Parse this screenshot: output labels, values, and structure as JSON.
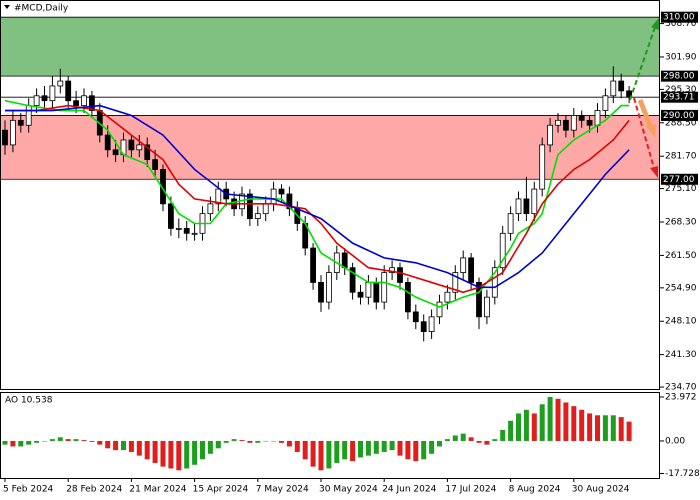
{
  "chart_data": [
    {
      "type": "candlestick",
      "title": "#MCD,Daily",
      "categories": [
        "5 Feb 2024",
        null,
        null,
        null,
        null,
        null,
        null,
        null,
        "28 Feb 2024",
        null,
        null,
        null,
        null,
        null,
        null,
        null,
        "21 Mar 2024",
        null,
        null,
        null,
        null,
        null,
        null,
        null,
        "15 Apr 2024",
        null,
        null,
        null,
        null,
        null,
        null,
        null,
        "7 May 2024",
        null,
        null,
        null,
        null,
        null,
        null,
        null,
        "30 May 2024",
        null,
        null,
        null,
        null,
        null,
        null,
        null,
        "24 Jun 2024",
        null,
        null,
        null,
        null,
        null,
        null,
        null,
        "17 Jul 2024",
        null,
        null,
        null,
        null,
        null,
        null,
        null,
        "8 Aug 2024",
        null,
        null,
        null,
        null,
        null,
        null,
        null,
        "30 Aug 2024",
        null,
        null,
        null,
        null,
        null,
        null,
        null
      ],
      "open": [
        287,
        284,
        289,
        288,
        292,
        294,
        293,
        296,
        297,
        293,
        292,
        294,
        291,
        286,
        283,
        282,
        285,
        283,
        284,
        281,
        279,
        272,
        267,
        267,
        266,
        266,
        270,
        272,
        275,
        273,
        271,
        274,
        269,
        270,
        272,
        275,
        274,
        271,
        268,
        263,
        256,
        252,
        258,
        262,
        259,
        254,
        253,
        256,
        252,
        258,
        259,
        256,
        250,
        248,
        246,
        249,
        252,
        254,
        258,
        261,
        256,
        249,
        253,
        259,
        266,
        270,
        273,
        270,
        275,
        284,
        288,
        289,
        287,
        290,
        289,
        288,
        291,
        294,
        297,
        295
      ],
      "high": [
        289,
        291,
        290.5,
        293.5,
        295.5,
        296,
        298,
        299.5,
        298,
        295,
        295.5,
        295,
        292.5,
        288,
        285,
        286.5,
        286,
        286,
        285.5,
        283,
        280,
        273.5,
        269,
        268.5,
        268,
        271.5,
        273.5,
        276.5,
        276.5,
        274.5,
        275.5,
        275,
        271.5,
        273.5,
        276.5,
        276,
        275.5,
        272.5,
        269.5,
        264,
        257.5,
        259.5,
        263.5,
        263,
        260,
        255.5,
        257.5,
        257,
        259.5,
        260.5,
        260,
        257,
        251.5,
        249.5,
        250.5,
        253.5,
        255.5,
        259.5,
        262.5,
        262,
        257,
        254.5,
        260.5,
        267.5,
        271.5,
        274.5,
        277.5,
        276.5,
        285.5,
        289.5,
        290.5,
        290,
        291.5,
        291,
        290,
        292.5,
        295.5,
        300,
        298.5,
        296
      ],
      "low": [
        282,
        282.5,
        286.5,
        286.5,
        290.5,
        291.5,
        291.5,
        294.5,
        291,
        290.5,
        290.5,
        289.5,
        284.5,
        281.5,
        280.5,
        280.5,
        281.5,
        281.5,
        279.5,
        277.5,
        270.5,
        265.5,
        265,
        264.5,
        264.5,
        264.5,
        268.5,
        270.5,
        271.5,
        269.5,
        269.5,
        267.5,
        267.5,
        268.5,
        270.5,
        272.5,
        269.5,
        266.5,
        261.5,
        254.5,
        250,
        250.5,
        256.5,
        257.5,
        252.5,
        251.5,
        251.5,
        250.5,
        250.5,
        256.5,
        254.5,
        248.5,
        246.5,
        244,
        244.5,
        247.5,
        250.5,
        252.5,
        256.5,
        254.5,
        246.5,
        247.5,
        251.5,
        257.5,
        264.5,
        268.5,
        268.5,
        268.5,
        273.5,
        282.5,
        286.5,
        285.5,
        285.5,
        287.5,
        286.5,
        286.5,
        289.5,
        292.5,
        293.5,
        292.5
      ],
      "close": [
        284,
        289,
        288,
        292,
        294,
        293,
        296,
        297,
        293,
        292,
        294,
        291,
        286,
        283,
        282,
        285,
        283,
        284,
        281,
        279,
        272,
        267,
        267,
        266,
        266,
        270,
        272,
        275,
        273,
        271,
        274,
        269,
        270,
        272,
        275,
        274,
        271,
        268,
        263,
        256,
        252,
        258,
        262,
        259,
        254,
        253,
        256,
        252,
        258,
        259,
        256,
        250,
        248,
        246,
        249,
        252,
        254,
        258,
        261,
        256,
        249,
        253,
        259,
        266,
        270,
        273,
        270,
        275,
        284,
        288,
        289,
        287,
        290,
        289,
        288,
        291,
        294,
        297,
        295,
        293.71
      ],
      "series": [
        {
          "color": "#00e000",
          "x": [
            0,
            3,
            7,
            10,
            13,
            15,
            18,
            20,
            22,
            24,
            26,
            28,
            31,
            35,
            38,
            40,
            42,
            44,
            46,
            48,
            50,
            52,
            55,
            58,
            60,
            62,
            64,
            65,
            67,
            68,
            70,
            72,
            74,
            76,
            78,
            79
          ],
          "values": [
            293,
            292,
            291,
            291,
            287,
            282,
            280,
            275,
            270,
            268,
            268,
            272,
            273,
            273,
            268,
            262,
            260,
            258,
            256,
            256,
            255,
            253,
            251,
            253,
            254,
            258,
            263,
            266,
            268,
            270,
            282,
            285,
            287,
            289,
            292,
            292
          ]
        },
        {
          "color": "#e00000",
          "x": [
            0,
            4,
            8,
            12,
            16,
            20,
            22,
            24,
            28,
            34,
            38,
            40,
            42,
            46,
            50,
            54,
            58,
            60,
            63,
            66,
            68,
            70,
            72,
            74,
            77,
            79
          ],
          "values": [
            291,
            291,
            292,
            291,
            286,
            281,
            276,
            273,
            272,
            272,
            271,
            268,
            264,
            259,
            258,
            256,
            254,
            255,
            258,
            266,
            272,
            276,
            279,
            281,
            285,
            289
          ]
        },
        {
          "color": "#0000d0",
          "x": [
            0,
            6,
            12,
            16,
            20,
            24,
            28,
            34,
            40,
            44,
            48,
            52,
            56,
            60,
            62,
            65,
            68,
            72,
            76,
            79
          ],
          "values": [
            291,
            291,
            292,
            290,
            286,
            279,
            274,
            273,
            269,
            264,
            261,
            260,
            258,
            255,
            255,
            258,
            262,
            270,
            278,
            283
          ]
        }
      ],
      "zones": [
        {
          "from": 298,
          "to": 310,
          "color": "#80c080"
        },
        {
          "from": 277,
          "to": 290,
          "color": "#ffa8a8"
        }
      ],
      "levels": [
        {
          "value": 310,
          "label": "310.00"
        },
        {
          "value": 298,
          "label": "298.00"
        },
        {
          "value": 293.71,
          "label": "293.71"
        },
        {
          "value": 290,
          "label": "290.00"
        },
        {
          "value": 277,
          "label": "277.00"
        }
      ],
      "ylim": [
        234.1,
        313.5
      ],
      "yticks": [
        {
          "value": 308.7,
          "label": "308.70"
        },
        {
          "value": 301.9,
          "label": "301.90"
        },
        {
          "value": 295.3,
          "label": "295.30"
        },
        {
          "value": 288.5,
          "label": "288.50"
        },
        {
          "value": 281.7,
          "label": "281.70"
        },
        {
          "value": 275.1,
          "label": "275.10"
        },
        {
          "value": 268.3,
          "label": "268.30"
        },
        {
          "value": 261.5,
          "label": "261.50"
        },
        {
          "value": 254.9,
          "label": "254.90"
        },
        {
          "value": 248.1,
          "label": "248.10"
        },
        {
          "value": 241.3,
          "label": "241.30"
        },
        {
          "value": 234.7,
          "label": "234.70"
        }
      ],
      "grid": false
    },
    {
      "type": "histogram",
      "title": "AO 10.538",
      "up_color": "#1e9e1e",
      "down_color": "#e01e1e",
      "values": [
        -2,
        -3,
        -3,
        -2,
        -1,
        0,
        1,
        2,
        1,
        1,
        0.5,
        -0.5,
        -2,
        -4,
        -5,
        -5,
        -6,
        -8,
        -10,
        -12,
        -14,
        -15,
        -16,
        -15,
        -13,
        -10,
        -7,
        -4,
        -1,
        1,
        0.5,
        -1,
        -1,
        0,
        0,
        -1,
        -3,
        -6,
        -10,
        -14,
        -16,
        -15,
        -12,
        -10,
        -11,
        -9,
        -8,
        -7,
        -6,
        -5,
        -8,
        -10,
        -11,
        -10,
        -7,
        -3,
        1,
        3,
        4,
        2,
        -1,
        -2,
        1,
        6,
        11,
        15,
        17,
        15,
        20,
        24,
        23,
        21,
        19,
        17,
        15,
        14,
        14,
        14,
        13,
        10.538
      ],
      "ylim": [
        -20.2,
        26.7
      ],
      "yticks": [
        23.972,
        {
          "value": 0,
          "label": "0.00"
        },
        -17.728
      ]
    }
  ]
}
